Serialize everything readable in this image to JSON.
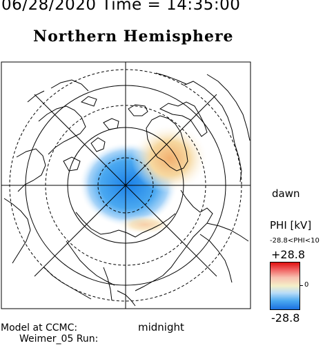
{
  "header": {
    "datetime": "06/28/2020 Time = 14:35:00",
    "hemisphere": "Northern Hemisphere"
  },
  "map": {
    "dawn_label": "dawn",
    "midnight_label": "midnight",
    "positive_cell_color": "#f0c080",
    "negative_cell_color": "#3f9ff0"
  },
  "footer": {
    "model_line1": "Model at CCMC:",
    "model_line2": "Weimer_05 Run:"
  },
  "colorbar": {
    "title": "PHI [kV]",
    "range_text": "-28.8<PHI<10",
    "max_label": "+28.8",
    "zero_label": "0",
    "min_label": "-28.8",
    "top_color": "#e01010",
    "mid_color": "#f4f0c8",
    "bottom_color": "#1a70e0"
  }
}
